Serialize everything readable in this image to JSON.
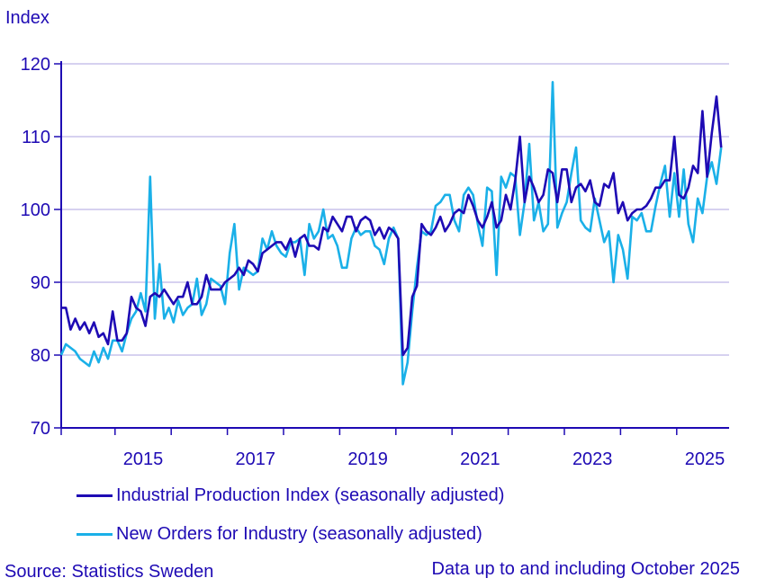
{
  "chart_data": {
    "type": "line",
    "title": "",
    "ylabel": "Index",
    "xlabel": "",
    "ylim": [
      70,
      120
    ],
    "yticks": [
      70,
      80,
      90,
      100,
      110,
      120
    ],
    "xtick_labels": [
      "2015",
      "2017",
      "2019",
      "2021",
      "2023",
      "2025"
    ],
    "x_start": "2014-01",
    "x_end": "2025-10",
    "frequency": "monthly",
    "grid": true,
    "legend_position": "bottom",
    "series": [
      {
        "name": "Industrial Production Index (seasonally adjusted)",
        "color": "#1e0ab4",
        "values": [
          86.5,
          86.5,
          83.5,
          85,
          83.5,
          84.5,
          83,
          84.5,
          82.5,
          83,
          81.5,
          86,
          82,
          82,
          83,
          88,
          86.5,
          86,
          84,
          88,
          88.5,
          88,
          89,
          88,
          87,
          88,
          88,
          90,
          87,
          87,
          88,
          91,
          89,
          89,
          89,
          90,
          90.5,
          91,
          92,
          91,
          93,
          92.5,
          91.5,
          94,
          94.5,
          95,
          95.5,
          95.5,
          94.5,
          96,
          93.5,
          96,
          96.5,
          95,
          95,
          94.5,
          97.5,
          97,
          99,
          98,
          97,
          99,
          99,
          97,
          98.5,
          99,
          98.5,
          96.5,
          97.5,
          96,
          97.5,
          97,
          96,
          80,
          81,
          88,
          89.5,
          98,
          97,
          96.5,
          97.5,
          99,
          97,
          98,
          99.5,
          100,
          99.5,
          102,
          100.5,
          98.5,
          97.5,
          99,
          101,
          97.5,
          98.5,
          102,
          100,
          104,
          110,
          101,
          104.5,
          103,
          101,
          102,
          105.5,
          105,
          101,
          105.5,
          105.5,
          101,
          103,
          103.5,
          102.5,
          104,
          101,
          100.5,
          103.5,
          103,
          105,
          99.5,
          101,
          98.5,
          99.5,
          100,
          100,
          100.5,
          101.5,
          103,
          103,
          104,
          104,
          110,
          102,
          101.5,
          103,
          106,
          105,
          113.5,
          104.5,
          110.5,
          115.5,
          108.5
        ]
      },
      {
        "name": "New Orders for Industry (seasonally adjusted)",
        "color": "#1ab0e8",
        "values": [
          80,
          81.5,
          81,
          80.5,
          79.5,
          79,
          78.5,
          80.5,
          79,
          81,
          79.5,
          82,
          82,
          80.5,
          83,
          85,
          86,
          88.5,
          86,
          104.5,
          85,
          92.5,
          85,
          86.5,
          84.5,
          87.5,
          85.5,
          86.5,
          87,
          90.5,
          85.5,
          87,
          90.5,
          90,
          89.5,
          87,
          94,
          98,
          89,
          92,
          91.5,
          91,
          91.5,
          96,
          94.5,
          97,
          95,
          94,
          93.5,
          95.5,
          95.5,
          96,
          91,
          98,
          96,
          97,
          100,
          96,
          96.5,
          95,
          92,
          92,
          96,
          97.5,
          96.5,
          97,
          97,
          95,
          94.5,
          92.5,
          96,
          97.5,
          96,
          76,
          79,
          86,
          92,
          97,
          96.5,
          97,
          100.5,
          101,
          102,
          102,
          98.5,
          97,
          102,
          103,
          102,
          98,
          95,
          103,
          102.5,
          91,
          104.5,
          103,
          105,
          104.5,
          96.5,
          101,
          109,
          98.5,
          101,
          97,
          98,
          117.5,
          97.5,
          99.5,
          101,
          105,
          108.5,
          98.5,
          97.5,
          97,
          101.5,
          98.5,
          95.5,
          97,
          90,
          96.5,
          94.5,
          90.5,
          99,
          98.5,
          99.5,
          97,
          97,
          100.5,
          103.5,
          106,
          99,
          105,
          99,
          105.5,
          98,
          95.5,
          101.5,
          99.5,
          104.5,
          106.5,
          103.5,
          108.5
        ]
      }
    ]
  },
  "footer": {
    "source": "Source: Statistics Sweden",
    "note": "Data up to and including October 2025"
  }
}
